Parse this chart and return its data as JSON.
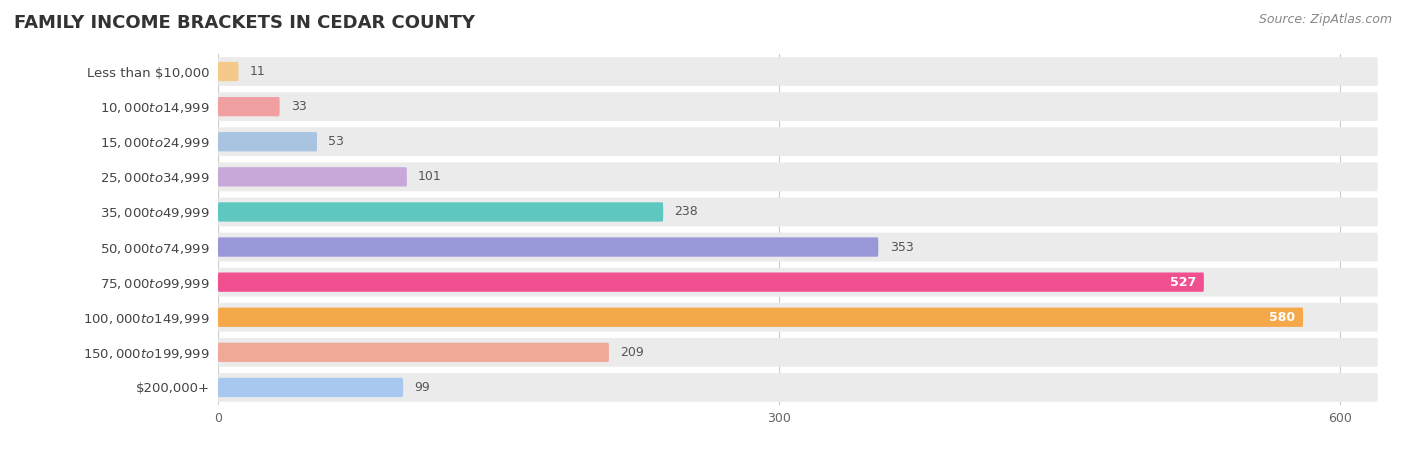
{
  "title": "FAMILY INCOME BRACKETS IN CEDAR COUNTY",
  "source": "Source: ZipAtlas.com",
  "categories": [
    "Less than $10,000",
    "$10,000 to $14,999",
    "$15,000 to $24,999",
    "$25,000 to $34,999",
    "$35,000 to $49,999",
    "$50,000 to $74,999",
    "$75,000 to $99,999",
    "$100,000 to $149,999",
    "$150,000 to $199,999",
    "$200,000+"
  ],
  "values": [
    11,
    33,
    53,
    101,
    238,
    353,
    527,
    580,
    209,
    99
  ],
  "bar_colors": [
    "#F5C98A",
    "#F0A0A0",
    "#A8C4E0",
    "#C8A8D8",
    "#5EC8C0",
    "#9898D8",
    "#F05090",
    "#F5A84A",
    "#F0A898",
    "#A8C8F0"
  ],
  "bg_color": "#e8e8e8",
  "xlim": [
    0,
    620
  ],
  "xticks": [
    0,
    300,
    600
  ],
  "figsize": [
    14.06,
    4.5
  ],
  "dpi": 100,
  "background_color": "#ffffff",
  "row_bg_color": "#ebebeb",
  "title_fontsize": 13,
  "label_fontsize": 9.5,
  "value_fontsize": 9,
  "source_fontsize": 9
}
